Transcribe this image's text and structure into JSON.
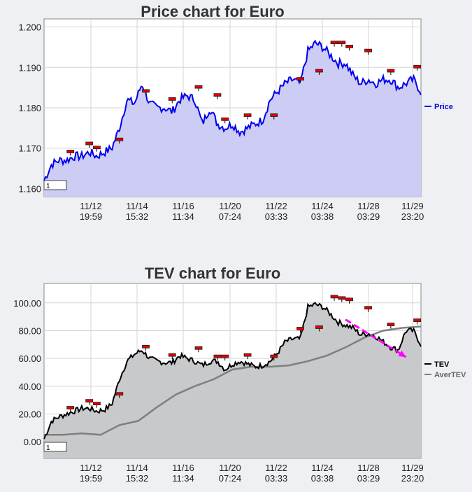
{
  "chart_data": [
    {
      "type": "area",
      "title": "Price chart for Euro",
      "xlabel": "",
      "ylabel": "",
      "ylim": [
        1.158,
        1.202
      ],
      "y_ticks": [
        "1.160",
        "1.170",
        "1.180",
        "1.190",
        "1.200"
      ],
      "x_ticks": [
        {
          "date": "11/12",
          "time": "19:59"
        },
        {
          "date": "11/14",
          "time": "15:32"
        },
        {
          "date": "11/16",
          "time": "11:34"
        },
        {
          "date": "11/20",
          "time": "07:24"
        },
        {
          "date": "11/22",
          "time": "03:33"
        },
        {
          "date": "11/24",
          "time": "03:38"
        },
        {
          "date": "11/28",
          "time": "03:29"
        },
        {
          "date": "11/29",
          "time": "23:20"
        }
      ],
      "series": [
        {
          "name": "Price",
          "color": "#0000ee",
          "fill": "#ccccf5",
          "x_index": [
            0,
            2,
            4,
            6,
            8,
            10,
            12,
            14,
            16,
            18,
            20,
            22,
            24,
            26,
            28,
            30,
            32,
            34,
            36,
            38,
            40,
            42,
            44,
            46,
            48,
            50,
            52,
            54,
            56,
            58,
            60,
            62,
            64,
            66,
            68,
            70,
            72,
            74,
            76,
            78,
            80,
            82,
            84,
            86,
            88,
            90,
            92,
            94,
            96,
            98,
            100
          ],
          "values": [
            1.162,
            1.166,
            1.167,
            1.167,
            1.168,
            1.168,
            1.169,
            1.168,
            1.169,
            1.17,
            1.175,
            1.182,
            1.181,
            1.186,
            1.181,
            1.18,
            1.18,
            1.179,
            1.182,
            1.183,
            1.182,
            1.176,
            1.18,
            1.176,
            1.175,
            1.176,
            1.174,
            1.175,
            1.176,
            1.177,
            1.182,
            1.184,
            1.186,
            1.187,
            1.186,
            1.194,
            1.196,
            1.195,
            1.193,
            1.191,
            1.191,
            1.188,
            1.186,
            1.187,
            1.186,
            1.187,
            1.187,
            1.185,
            1.186,
            1.187,
            1.184
          ]
        }
      ],
      "markers": [
        {
          "x": 7,
          "y": 1.169
        },
        {
          "x": 12,
          "y": 1.171
        },
        {
          "x": 14,
          "y": 1.17
        },
        {
          "x": 20,
          "y": 1.172
        },
        {
          "x": 27,
          "y": 1.184
        },
        {
          "x": 34,
          "y": 1.182
        },
        {
          "x": 41,
          "y": 1.185
        },
        {
          "x": 46,
          "y": 1.183
        },
        {
          "x": 48,
          "y": 1.177
        },
        {
          "x": 54,
          "y": 1.178
        },
        {
          "x": 61,
          "y": 1.178
        },
        {
          "x": 68,
          "y": 1.187
        },
        {
          "x": 73,
          "y": 1.189
        },
        {
          "x": 77,
          "y": 1.196
        },
        {
          "x": 79,
          "y": 1.196
        },
        {
          "x": 81,
          "y": 1.195
        },
        {
          "x": 86,
          "y": 1.194
        },
        {
          "x": 92,
          "y": 1.189
        },
        {
          "x": 99,
          "y": 1.19
        }
      ],
      "legend_position": "right",
      "grid": true,
      "box_label": "1"
    },
    {
      "type": "area",
      "title": "TEV chart for Euro",
      "xlabel": "",
      "ylabel": "",
      "ylim": [
        -12,
        114
      ],
      "y_ticks": [
        "0.00",
        "20.00",
        "40.00",
        "60.00",
        "80.00",
        "100.00"
      ],
      "x_ticks": [
        {
          "date": "11/12",
          "time": "19:59"
        },
        {
          "date": "11/14",
          "time": "15:32"
        },
        {
          "date": "11/16",
          "time": "11:34"
        },
        {
          "date": "11/20",
          "time": "07:24"
        },
        {
          "date": "11/22",
          "time": "03:33"
        },
        {
          "date": "11/24",
          "time": "03:38"
        },
        {
          "date": "11/28",
          "time": "03:29"
        },
        {
          "date": "11/29",
          "time": "23:20"
        }
      ],
      "series": [
        {
          "name": "TEV",
          "color": "#000000",
          "fill": "#c7c9cb",
          "x_index": [
            0,
            2,
            4,
            6,
            8,
            10,
            12,
            14,
            16,
            18,
            20,
            22,
            24,
            26,
            28,
            30,
            32,
            34,
            36,
            38,
            40,
            42,
            44,
            46,
            48,
            50,
            52,
            54,
            56,
            58,
            60,
            62,
            64,
            66,
            68,
            70,
            72,
            74,
            76,
            78,
            80,
            82,
            84,
            86,
            88,
            90,
            92,
            94,
            96,
            98,
            100
          ],
          "values": [
            2,
            15,
            18,
            20,
            22,
            24,
            24,
            22,
            23,
            27,
            45,
            58,
            63,
            66,
            60,
            58,
            57,
            57,
            62,
            60,
            58,
            55,
            58,
            58,
            52,
            56,
            58,
            56,
            54,
            55,
            58,
            64,
            72,
            74,
            74,
            97,
            99,
            97,
            92,
            86,
            84,
            82,
            77,
            78,
            76,
            72,
            68,
            66,
            80,
            80,
            70
          ]
        },
        {
          "name": "AverTEV",
          "color": "#7f7f7f",
          "fill": "#c3c3c3",
          "x_index": [
            0,
            5,
            10,
            15,
            20,
            25,
            30,
            35,
            40,
            45,
            50,
            55,
            60,
            65,
            70,
            75,
            80,
            85,
            90,
            95,
            100
          ],
          "values": [
            5,
            5,
            6,
            5,
            12,
            15,
            25,
            34,
            40,
            45,
            52,
            54,
            54,
            55,
            58,
            62,
            68,
            75,
            80,
            82,
            83
          ]
        }
      ],
      "markers": [
        {
          "x": 7,
          "y": 24
        },
        {
          "x": 12,
          "y": 29
        },
        {
          "x": 14,
          "y": 27
        },
        {
          "x": 20,
          "y": 34
        },
        {
          "x": 27,
          "y": 68
        },
        {
          "x": 34,
          "y": 62
        },
        {
          "x": 41,
          "y": 67
        },
        {
          "x": 46,
          "y": 61
        },
        {
          "x": 48,
          "y": 61
        },
        {
          "x": 54,
          "y": 62
        },
        {
          "x": 61,
          "y": 61
        },
        {
          "x": 68,
          "y": 81
        },
        {
          "x": 73,
          "y": 82
        },
        {
          "x": 77,
          "y": 104
        },
        {
          "x": 79,
          "y": 103
        },
        {
          "x": 81,
          "y": 102
        },
        {
          "x": 86,
          "y": 96
        },
        {
          "x": 92,
          "y": 84
        },
        {
          "x": 99,
          "y": 87
        }
      ],
      "trend_arrow": {
        "color": "#ff00ff",
        "from": {
          "x": 80,
          "y": 88
        },
        "to": {
          "x": 96,
          "y": 61
        }
      },
      "legend_position": "right",
      "grid": true,
      "box_label": "1"
    }
  ]
}
